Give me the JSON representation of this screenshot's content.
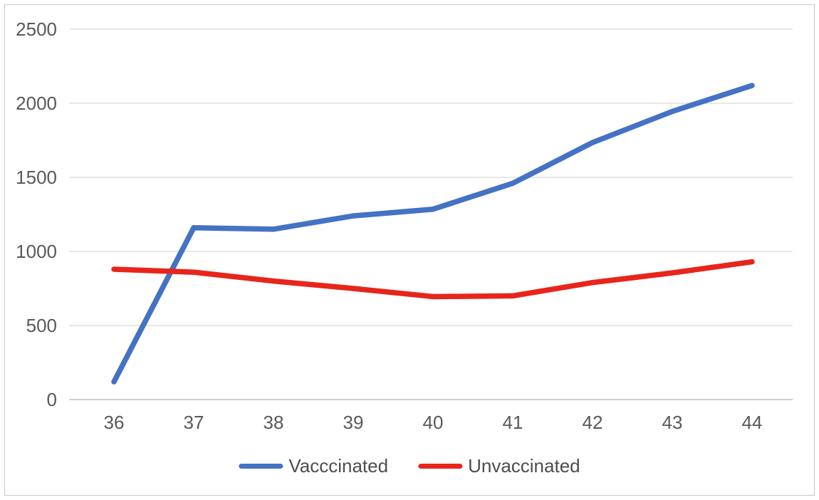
{
  "chart_data": {
    "type": "line",
    "categories": [
      "36",
      "37",
      "38",
      "39",
      "40",
      "41",
      "42",
      "43",
      "44"
    ],
    "series": [
      {
        "name": "Vacccinated",
        "color": "#4472c4",
        "values": [
          120,
          1160,
          1150,
          1240,
          1285,
          1460,
          1735,
          1945,
          2120
        ]
      },
      {
        "name": "Unvaccinated",
        "color": "#e8251b",
        "values": [
          880,
          860,
          800,
          750,
          695,
          700,
          790,
          855,
          930
        ]
      }
    ],
    "yticks": [
      0,
      500,
      1000,
      1500,
      2000,
      2500
    ],
    "ylim": [
      0,
      2500
    ],
    "title": "",
    "xlabel": "",
    "ylabel": "",
    "grid": "horizontal",
    "legend_position": "bottom",
    "colors": {
      "axis_text": "#595959",
      "legend_text": "#4d4d4d",
      "gridline": "#d9d9d9",
      "axis_line": "#bfbfbf",
      "frame_border": "#c9c9c9",
      "background": "#ffffff"
    }
  }
}
